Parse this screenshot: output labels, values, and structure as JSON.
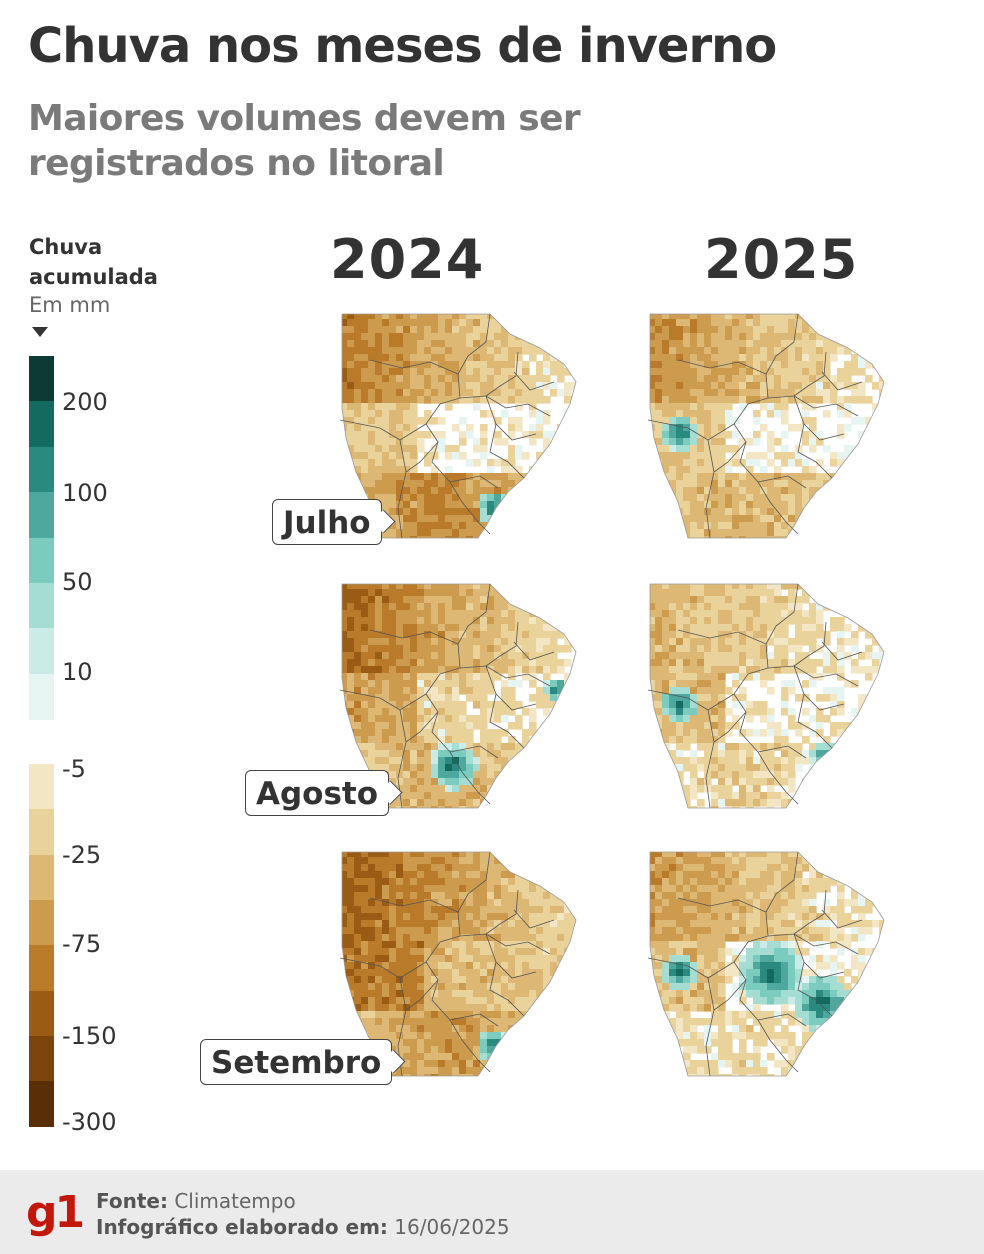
{
  "title": "Chuva nos meses de inverno",
  "subtitle": "Maiores volumes devem ser registrados no litoral",
  "legend": {
    "title_line1": "Chuva",
    "title_line2": "acumulada",
    "unit": "Em mm",
    "positive_colors": [
      "#0b3b33",
      "#136b60",
      "#2a8a7f",
      "#4ea89d",
      "#7bcbbf",
      "#a5ddd3",
      "#cbece6",
      "#e6f5f2"
    ],
    "negative_colors": [
      "#f3e6c4",
      "#ead29b",
      "#dcb874",
      "#cc9b4d",
      "#b97a2a",
      "#9a5b14",
      "#7a440c",
      "#5a2e06"
    ],
    "ticks": [
      "200",
      "100",
      "50",
      "10",
      "-5",
      "-25",
      "-75",
      "-150",
      "-300"
    ]
  },
  "years": [
    "2024",
    "2025"
  ],
  "months": [
    "Julho",
    "Agosto",
    "Setembro"
  ],
  "maps": [
    {
      "year": "2024",
      "month": "Julho",
      "north_dryness": 0.75,
      "center_dryness": 0.1,
      "south_dryness": 0.7,
      "wet_spots": [
        "south-coast"
      ]
    },
    {
      "year": "2025",
      "month": "Julho",
      "north_dryness": 0.65,
      "center_dryness": 0.1,
      "south_dryness": 0.45,
      "wet_spots": [
        "west"
      ]
    },
    {
      "year": "2024",
      "month": "Agosto",
      "north_dryness": 0.85,
      "center_dryness": 0.3,
      "south_dryness": 0.5,
      "wet_spots": [
        "south",
        "northeast-coast"
      ]
    },
    {
      "year": "2025",
      "month": "Agosto",
      "north_dryness": 0.45,
      "center_dryness": 0.15,
      "south_dryness": 0.25,
      "wet_spots": [
        "west",
        "southeast-coast"
      ]
    },
    {
      "year": "2024",
      "month": "Setembro",
      "north_dryness": 0.9,
      "center_dryness": 0.55,
      "south_dryness": 0.6,
      "wet_spots": [
        "south-coast"
      ]
    },
    {
      "year": "2025",
      "month": "Setembro",
      "north_dryness": 0.6,
      "center_dryness": 0.15,
      "south_dryness": 0.2,
      "wet_spots": [
        "west",
        "center",
        "southeast"
      ]
    }
  ],
  "footer": {
    "logo": "g1",
    "source_label": "Fonte:",
    "source_value": "Climatempo",
    "date_label": "Infográfico elaborado em:",
    "date_value": "16/06/2025",
    "brand_color": "#c4170c"
  }
}
